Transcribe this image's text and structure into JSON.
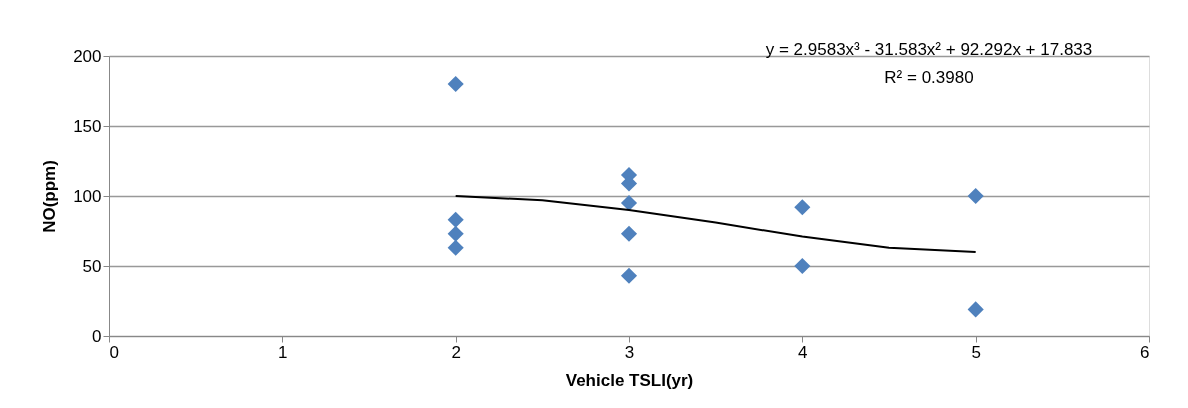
{
  "chart_data": {
    "type": "scatter",
    "xlabel": "Vehicle TSLI(yr)",
    "ylabel": "NO(ppm)",
    "xlim": [
      0,
      6
    ],
    "xticks": [
      0,
      1,
      2,
      3,
      4,
      5,
      6
    ],
    "ylim": [
      0,
      200
    ],
    "yticks": [
      0,
      50,
      100,
      150,
      200
    ],
    "grid": "y",
    "series": [
      {
        "marker": "diamond",
        "color": "#4f81bd",
        "x": [
          2,
          2,
          2,
          2,
          3,
          3,
          3,
          3,
          3,
          4,
          4,
          5,
          5
        ],
        "values": [
          180,
          83,
          73,
          63,
          115,
          109,
          95,
          73,
          43,
          92,
          50,
          100,
          19
        ]
      },
      {
        "type": "line",
        "color": "#000000",
        "x": [
          2,
          2.5,
          3,
          3.5,
          4,
          4.5,
          5
        ],
        "values": [
          100,
          97,
          90,
          81,
          71,
          63,
          60
        ]
      }
    ],
    "annotations": [
      "y = 2.9583x³ - 31.583x² + 92.292x + 17.833",
      "R² = 0.3980"
    ]
  }
}
